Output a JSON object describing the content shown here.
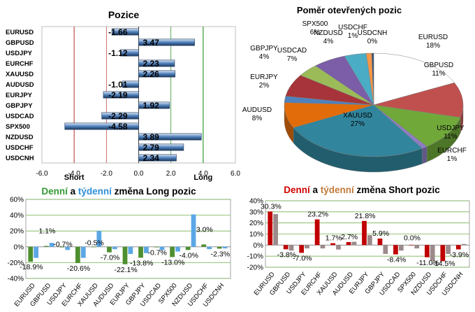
{
  "colors": {
    "bar_blue": "#4f81bd",
    "bar_dark": "#1f3a5f",
    "long_line": "#339933",
    "short_line": "#c0504d",
    "green_week": "#4e8f2f",
    "blue_day": "#5ba7e6",
    "red_day": "#c00000",
    "grey_week": "#9c8a8a",
    "title_green": "#339933",
    "title_blue": "#2f8fd8",
    "title_red": "#d00000",
    "title_tan": "#c07a3a"
  },
  "chart_data": [
    {
      "type": "bar",
      "orientation": "horizontal",
      "title": "Pozice",
      "categories": [
        "EURUSD",
        "GBPUSD",
        "USDJPY",
        "EURCHF",
        "XAUUSD",
        "AUDUSD",
        "EURJPY",
        "GBPJPY",
        "USDCAD",
        "SPX500",
        "NZDUSD",
        "USDCHF",
        "USDCNH"
      ],
      "values": [
        -1.66,
        3.47,
        -1.12,
        2.23,
        2.26,
        -1.01,
        -2.19,
        1.92,
        -2.29,
        -4.58,
        3.89,
        2.79,
        2.34
      ],
      "labels": [
        "-1.66",
        "3.47",
        "-1.12",
        "2.23",
        "2.26",
        "-1.01",
        "-2.19",
        "1.92",
        "-2.29",
        "-4.58",
        "3.89",
        "2.79",
        "2.34"
      ],
      "xlim": [
        -6,
        6
      ],
      "ticks": [
        -6,
        -4,
        -2,
        0,
        2,
        4,
        6
      ],
      "tick_labels": [
        "-6.0",
        "-4.0",
        "-2.0",
        "0.0",
        "2.0",
        "4.0",
        "6.0"
      ],
      "reference_lines": [
        {
          "value": -4,
          "label": "Short"
        },
        {
          "value": -2,
          "label": ""
        },
        {
          "value": 2,
          "label": ""
        },
        {
          "value": 4,
          "label": "Long"
        }
      ]
    },
    {
      "type": "pie",
      "style": "3d",
      "title": "Poměr  otevřených pozic",
      "slices": [
        {
          "name": "EURUSD",
          "value": 18,
          "label": "18%",
          "color": "#ffffff"
        },
        {
          "name": "GBPUSD",
          "value": 11,
          "label": "11%",
          "color": "#c0504d"
        },
        {
          "name": "USDJPY",
          "value": 11,
          "label": "11%",
          "color": "#70a83a"
        },
        {
          "name": "EURCHF",
          "value": 1,
          "label": "1%",
          "color": "#8e7cc3"
        },
        {
          "name": "XAUUSD",
          "value": 27,
          "label": "27%",
          "color": "#31859c"
        },
        {
          "name": "AUDUSD",
          "value": 8,
          "label": "8%",
          "color": "#e36c0a"
        },
        {
          "name": "EURJPY",
          "value": 2,
          "label": "2%",
          "color": "#4f81bd"
        },
        {
          "name": "USDCAD",
          "value": 7,
          "label": "7%",
          "color": "#a6343a"
        },
        {
          "name": "GBPJPY",
          "value": 4,
          "label": "4%",
          "color": "#9bbb59"
        },
        {
          "name": "SPX500",
          "value": 6,
          "label": "6%",
          "color": "#7b5ea7"
        },
        {
          "name": "NZDUSD",
          "value": 4,
          "label": "4%",
          "color": "#4bacc6"
        },
        {
          "name": "USDCHF",
          "value": 1,
          "label": "1%",
          "color": "#f79646"
        },
        {
          "name": "USDCNH",
          "value": 0,
          "label": "0%",
          "color": "#2c4d75"
        }
      ]
    },
    {
      "type": "bar",
      "title_parts": [
        {
          "text": "Denní",
          "color": "#339933"
        },
        {
          "text": " a ",
          "color": "#000000"
        },
        {
          "text": "týdenní",
          "color": "#2f8fd8"
        },
        {
          "text": " změna Long pozic",
          "color": "#000000"
        }
      ],
      "categories": [
        "EURUSD",
        "GBPUSD",
        "USDJPY",
        "EURCHF",
        "XAUUSD",
        "AUDUSD",
        "EURJPY",
        "GBPJPY",
        "USDCAD",
        "SPX500",
        "NZDUSD",
        "USDCHF",
        "USDCNH"
      ],
      "series": [
        {
          "role": "daily",
          "values": [
            -18.9,
            1.1,
            -0.7,
            -20.6,
            -0.5,
            -7.0,
            -22.1,
            -13.8,
            -0.7,
            -13.0,
            -4.0,
            3.0,
            -2.3
          ]
        },
        {
          "role": "weekly",
          "values": [
            -14,
            5,
            -4,
            -14,
            20,
            -3,
            -9,
            -8,
            -4,
            -6,
            41,
            -3,
            -2
          ]
        }
      ],
      "labels": [
        "-18.9%",
        "1.1%",
        "-0.7%",
        "-20.6%",
        "-0.5%",
        "-7.0%",
        "-22.1%",
        "-13.8%",
        "-0.7%",
        "-13.0%",
        "-4.0%",
        "3.0%",
        "-2.3%"
      ],
      "ylim": [
        -40,
        60
      ],
      "ticks": [
        -40,
        -20,
        0,
        20,
        40,
        60
      ],
      "tick_labels": [
        "-40%",
        "-20%",
        "0%",
        "20%",
        "40%",
        "60%"
      ]
    },
    {
      "type": "bar",
      "title_parts": [
        {
          "text": "Denní",
          "color": "#d00000"
        },
        {
          "text": " a ",
          "color": "#000000"
        },
        {
          "text": "týdenní",
          "color": "#c07a3a"
        },
        {
          "text": " změna Short pozic",
          "color": "#000000"
        }
      ],
      "categories": [
        "EURUSD",
        "GBPUSD",
        "USDJPY",
        "EURCHF",
        "XAUUSD",
        "AUDUSD",
        "EURJPY",
        "GBPJPY",
        "USDCAD",
        "SPX500",
        "NZDUSD",
        "USDCHF",
        "USDCNH"
      ],
      "series": [
        {
          "role": "daily",
          "values": [
            30.3,
            -3.8,
            -7.0,
            23.2,
            1.7,
            2.7,
            21.8,
            5.9,
            -8.4,
            0.0,
            -11.0,
            -14.5,
            -3.9
          ]
        },
        {
          "role": "weekly",
          "values": [
            28,
            -5,
            -3,
            -3,
            -4,
            3,
            9,
            -8,
            -5,
            -3,
            -14,
            -8,
            1
          ]
        }
      ],
      "labels": [
        "30.3%",
        "-3.8%",
        "-7.0%",
        "23.2%",
        "1.7%",
        "2.7%",
        "21.8%",
        "5.9%",
        "-8.4%",
        "0.0%",
        "-11.0%",
        "-14.5%",
        "-3.9%"
      ],
      "ylim": [
        -20,
        40
      ],
      "ticks": [
        -20,
        -10,
        0,
        10,
        20,
        30,
        40
      ],
      "tick_labels": [
        "-20%",
        "-10%",
        "0%",
        "10%",
        "20%",
        "30%",
        "40%"
      ]
    }
  ]
}
